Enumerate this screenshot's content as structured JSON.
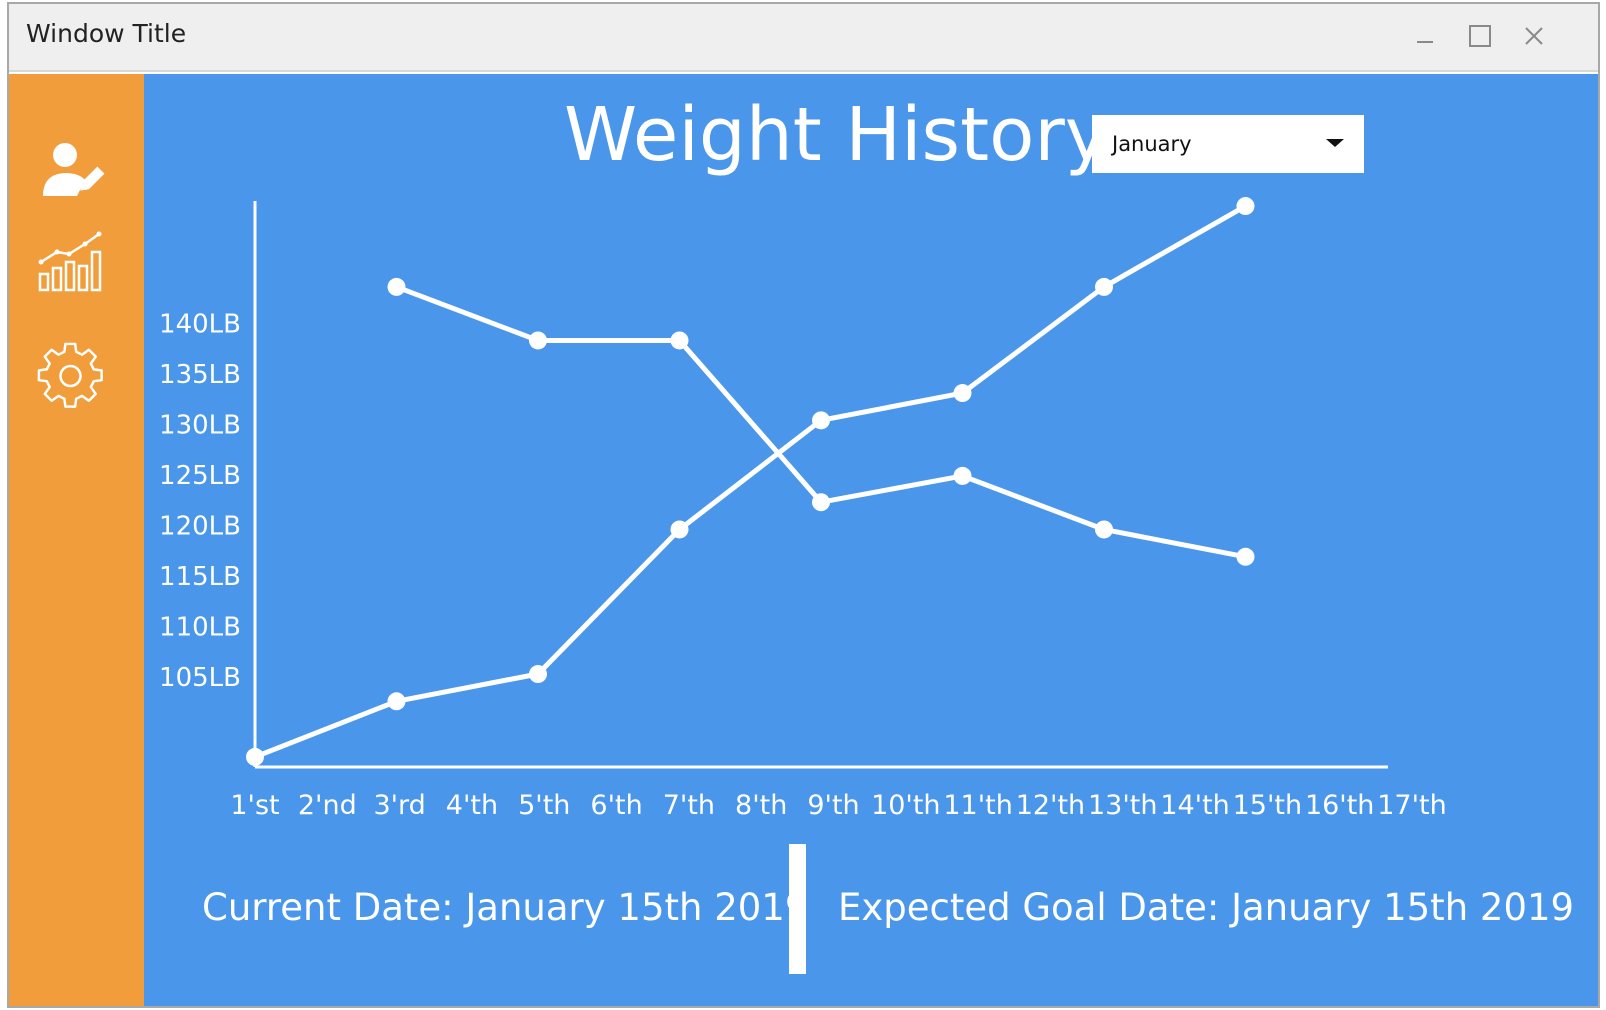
{
  "window": {
    "title": "Window Title",
    "controls": [
      "minimize-icon",
      "maximize-icon",
      "close-icon"
    ]
  },
  "sidebar": {
    "items": [
      {
        "icon": "user-edit-icon"
      },
      {
        "icon": "bar-chart-trend-icon"
      },
      {
        "icon": "gear-icon"
      }
    ]
  },
  "header": {
    "title": "Weight History",
    "month_select": "January"
  },
  "colors": {
    "main_bg": "#4a96ea",
    "sidebar_bg": "#f29d3b",
    "line": "#ffffff"
  },
  "chart_data": {
    "type": "line",
    "title": "",
    "xlabel": "",
    "ylabel": "",
    "categories": [
      "1'st",
      "2'nd",
      "3'rd",
      "4'th",
      "5'th",
      "6'th",
      "7'th",
      "8'th",
      "9'th",
      "10'th",
      "11'th",
      "12'th",
      "13'th",
      "14'th",
      "15'th",
      "16'th",
      "17'th"
    ],
    "y_ticks": [
      "105LB",
      "110LB",
      "115LB",
      "120LB",
      "125LB",
      "130LB",
      "135LB",
      "140LB"
    ],
    "y_tick_values": [
      105,
      110,
      115,
      120,
      125,
      130,
      135,
      140
    ],
    "ylim": [
      96,
      152
    ],
    "grid": false,
    "series": [
      {
        "x": [
          "1'st",
          "3'rd",
          "5'th",
          "7'th",
          "9'th",
          "11'th",
          "13'th",
          "15'th"
        ],
        "values": [
          97,
          102.5,
          105.2,
          119.5,
          130.3,
          133,
          143.5,
          151.5
        ]
      },
      {
        "x": [
          "3'rd",
          "5'th",
          "7'th",
          "9'th",
          "11'th",
          "13'th",
          "15'th"
        ],
        "values": [
          143.5,
          138.2,
          138.2,
          122.2,
          124.8,
          119.5,
          116.8
        ]
      }
    ]
  },
  "footer": {
    "current_date": "Current Date: January 15th 2019",
    "goal_date": "Expected Goal Date: January 15th 2019"
  }
}
